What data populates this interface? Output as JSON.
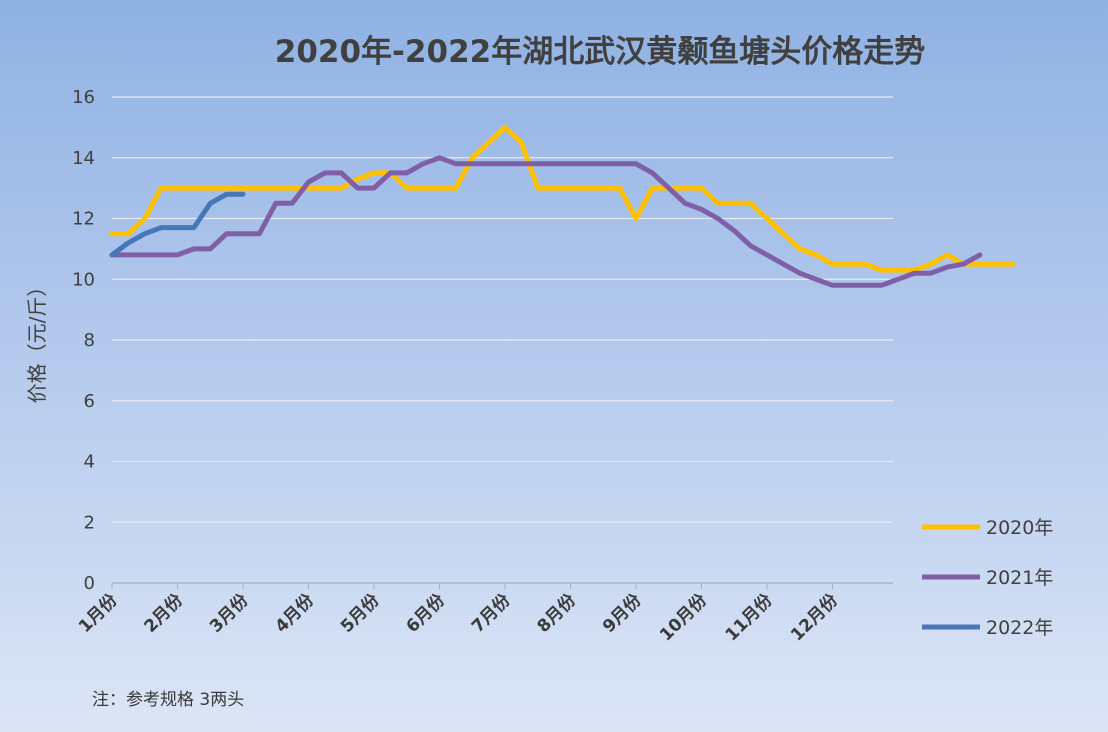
{
  "chart_data": {
    "type": "line",
    "title": "2020年-2022年湖北武汉黄颡鱼塘头价格走势",
    "ylabel": "价格（元/斤）",
    "xlabel": "",
    "ylim": [
      0,
      16
    ],
    "yticks": [
      0,
      2,
      4,
      6,
      8,
      10,
      12,
      14,
      16
    ],
    "x_tick_labels": [
      "1月份",
      "2月份",
      "3月份",
      "4月份",
      "5月份",
      "6月份",
      "7月份",
      "8月份",
      "9月份",
      "10月份",
      "11月份",
      "12月份"
    ],
    "points_per_month": 4,
    "grid": true,
    "legend_position": "bottom-right",
    "note": "注：参考规格  3两头",
    "series": [
      {
        "name": "2020年",
        "color": "#ffc000",
        "values": [
          11.5,
          11.5,
          12.0,
          13.0,
          13.0,
          13.0,
          13.0,
          13.0,
          13.0,
          13.0,
          13.0,
          13.0,
          13.0,
          13.0,
          13.0,
          13.3,
          13.5,
          13.5,
          13.0,
          13.0,
          13.0,
          13.0,
          14.0,
          14.5,
          15.0,
          14.5,
          13.0,
          13.0,
          13.0,
          13.0,
          13.0,
          13.0,
          12.0,
          13.0,
          13.0,
          13.0,
          13.0,
          12.5,
          12.5,
          12.5,
          12.0,
          11.5,
          11.0,
          10.8,
          10.5,
          10.5,
          10.5,
          10.3,
          10.3,
          10.3,
          10.5,
          10.8,
          10.5,
          10.5,
          10.5,
          10.5
        ]
      },
      {
        "name": "2021年",
        "color": "#7f60a6",
        "values": [
          10.8,
          10.8,
          10.8,
          10.8,
          10.8,
          11.0,
          11.0,
          11.5,
          11.5,
          11.5,
          12.5,
          12.5,
          13.2,
          13.5,
          13.5,
          13.0,
          13.0,
          13.5,
          13.5,
          13.8,
          14.0,
          13.8,
          13.8,
          13.8,
          13.8,
          13.8,
          13.8,
          13.8,
          13.8,
          13.8,
          13.8,
          13.8,
          13.8,
          13.5,
          13.0,
          12.5,
          12.3,
          12.0,
          11.6,
          11.1,
          10.8,
          10.5,
          10.2,
          10.0,
          9.8,
          9.8,
          9.8,
          9.8,
          10.0,
          10.2,
          10.2,
          10.4,
          10.5,
          10.8
        ]
      },
      {
        "name": "2022年",
        "color": "#4677b8",
        "values": [
          10.8,
          11.2,
          11.5,
          11.7,
          11.7,
          11.7,
          12.5,
          12.8,
          12.8
        ]
      }
    ]
  }
}
